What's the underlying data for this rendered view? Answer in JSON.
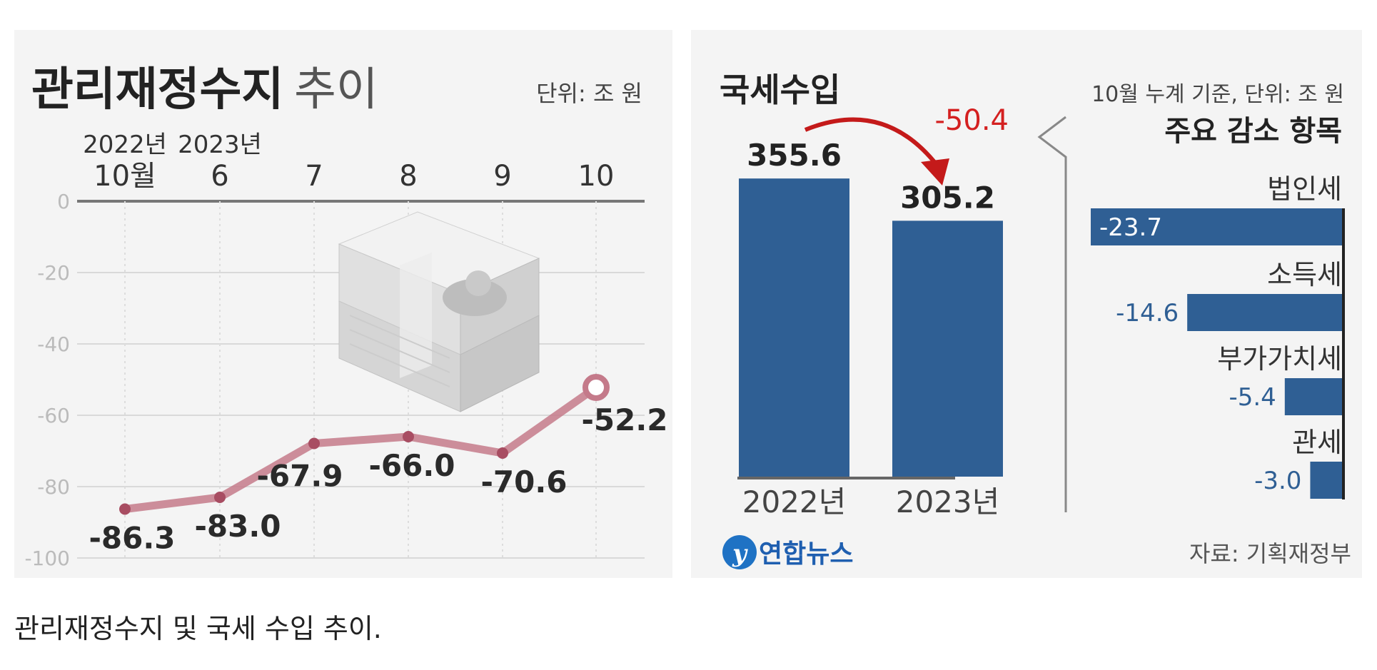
{
  "left_chart": {
    "title_bold": "관리재정수지",
    "title_light": "추이",
    "unit": "단위: 조 원",
    "period_labels": [
      [
        "2022년",
        "10월"
      ],
      [
        "2023년",
        "6"
      ],
      [
        "",
        "7"
      ],
      [
        "",
        "8"
      ],
      [
        "",
        "9"
      ],
      [
        "",
        "10"
      ]
    ],
    "colors": {
      "line": "#c47a8a",
      "marker": "#a84d62",
      "axis": "#777777",
      "grid": "#d9d9d9"
    }
  },
  "right_chart": {
    "title": "국세수입",
    "note": "10월 누계 기준, 단위: 조 원",
    "change_label": "-50.4",
    "breakdown_title": "주요 감소 항목",
    "source": "자료: 기획재정부",
    "logo_text": "연합뉴스",
    "colors": {
      "bar": "#2f5f94",
      "change": "#d42020"
    }
  },
  "caption": "관리재정수지 및 국세 수입 추이.",
  "chart_data": [
    {
      "type": "line",
      "title": "관리재정수지 추이",
      "x": [
        "2022년 10월",
        "2023년 6",
        "7",
        "8",
        "9",
        "10"
      ],
      "values": [
        -86.3,
        -83.0,
        -67.9,
        -66.0,
        -70.6,
        -52.2
      ],
      "data_labels": [
        "-86.3",
        "-83.0",
        "-67.9",
        "-66.0",
        "-70.6",
        "-52.2"
      ],
      "ylim": [
        -100,
        0
      ],
      "yticks": [
        0,
        -20,
        -40,
        -60,
        -80,
        -100
      ],
      "ytick_labels": [
        "0",
        "-20",
        "-40",
        "-60",
        "-80",
        "-100"
      ],
      "grid": true
    },
    {
      "type": "bar",
      "title": "국세수입",
      "categories": [
        "2022년",
        "2023년"
      ],
      "values": [
        355.6,
        305.2
      ],
      "data_labels": [
        "355.6",
        "305.2"
      ]
    },
    {
      "type": "bar",
      "title": "주요 감소 항목",
      "orientation": "horizontal",
      "categories": [
        "법인세",
        "소득세",
        "부가가치세",
        "관세"
      ],
      "values": [
        -23.7,
        -14.6,
        -5.4,
        -3.0
      ],
      "data_labels": [
        "-23.7",
        "-14.6",
        "-5.4",
        "-3.0"
      ]
    }
  ]
}
